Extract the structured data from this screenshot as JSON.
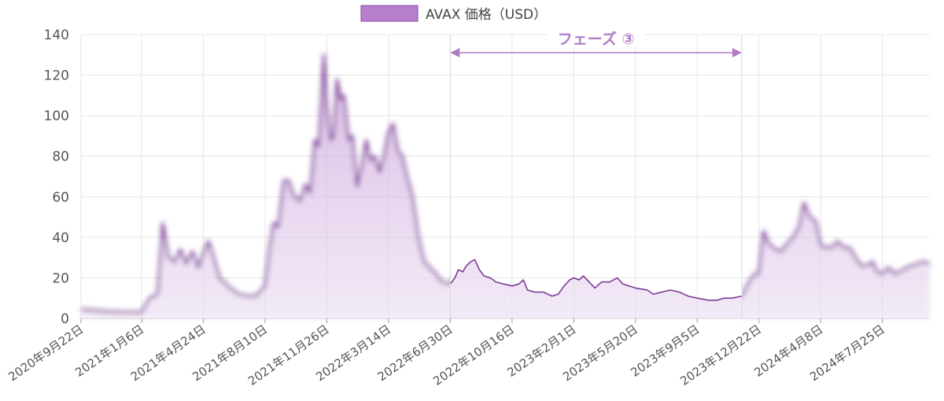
{
  "chart_data": {
    "type": "area",
    "legend": {
      "label": "AVAX 価格（USD）",
      "position": "top-center"
    },
    "colors": {
      "line": "#7b3a96",
      "fill": "#d7bde3",
      "legend_fill": "#b77fcc",
      "phase_arrow": "#b07cc6",
      "grid": "#e6e6e6"
    },
    "ylim": [
      0,
      140
    ],
    "yticks": [
      0,
      20,
      40,
      60,
      80,
      100,
      120,
      140
    ],
    "x_start": "2020-09-22",
    "x_end": "2024-10-16",
    "xticks": [
      {
        "date": "2020-09-22",
        "label": "2020年9月22日"
      },
      {
        "date": "2021-01-06",
        "label": "2021年1月6日"
      },
      {
        "date": "2021-04-24",
        "label": "2021年4月24日"
      },
      {
        "date": "2021-08-10",
        "label": "2021年8月10日"
      },
      {
        "date": "2021-11-26",
        "label": "2021年11月26日"
      },
      {
        "date": "2022-03-14",
        "label": "2022年3月14日"
      },
      {
        "date": "2022-06-30",
        "label": "2022年6月30日"
      },
      {
        "date": "2022-10-16",
        "label": "2022年10月16日"
      },
      {
        "date": "2023-02-01",
        "label": "2023年2月1日"
      },
      {
        "date": "2023-05-20",
        "label": "2023年5月20日"
      },
      {
        "date": "2023-09-05",
        "label": "2023年9月5日"
      },
      {
        "date": "2023-12-22",
        "label": "2023年12月22日"
      },
      {
        "date": "2024-04-08",
        "label": "2024年4月8日"
      },
      {
        "date": "2024-07-25",
        "label": "2024年7月25日"
      }
    ],
    "highlight": {
      "label": "フェーズ ③",
      "start": "2022-06-30",
      "end": "2023-11-22"
    },
    "series": [
      {
        "name": "AVAX 価格（USD）",
        "points": [
          [
            "2020-09-22",
            4.5
          ],
          [
            "2020-10-20",
            3.8
          ],
          [
            "2020-11-20",
            3.2
          ],
          [
            "2020-12-20",
            3.0
          ],
          [
            "2021-01-06",
            3.0
          ],
          [
            "2021-01-20",
            10
          ],
          [
            "2021-02-03",
            12
          ],
          [
            "2021-02-12",
            47
          ],
          [
            "2021-02-22",
            30
          ],
          [
            "2021-03-05",
            28
          ],
          [
            "2021-03-15",
            34
          ],
          [
            "2021-03-25",
            27
          ],
          [
            "2021-04-05",
            33
          ],
          [
            "2021-04-15",
            25
          ],
          [
            "2021-04-24",
            32
          ],
          [
            "2021-05-03",
            38
          ],
          [
            "2021-05-12",
            30
          ],
          [
            "2021-05-22",
            20
          ],
          [
            "2021-06-10",
            15
          ],
          [
            "2021-06-25",
            12
          ],
          [
            "2021-07-10",
            11
          ],
          [
            "2021-07-25",
            11
          ],
          [
            "2021-08-10",
            16
          ],
          [
            "2021-08-18",
            35
          ],
          [
            "2021-08-25",
            47
          ],
          [
            "2021-09-02",
            45
          ],
          [
            "2021-09-12",
            68
          ],
          [
            "2021-09-20",
            68
          ],
          [
            "2021-09-30",
            60
          ],
          [
            "2021-10-10",
            58
          ],
          [
            "2021-10-20",
            66
          ],
          [
            "2021-10-28",
            62
          ],
          [
            "2021-11-05",
            88
          ],
          [
            "2021-11-12",
            85
          ],
          [
            "2021-11-21",
            130
          ],
          [
            "2021-11-26",
            105
          ],
          [
            "2021-12-03",
            88
          ],
          [
            "2021-12-08",
            90
          ],
          [
            "2021-12-14",
            118
          ],
          [
            "2021-12-20",
            108
          ],
          [
            "2021-12-26",
            110
          ],
          [
            "2022-01-03",
            88
          ],
          [
            "2022-01-10",
            90
          ],
          [
            "2022-01-18",
            65
          ],
          [
            "2022-01-26",
            75
          ],
          [
            "2022-02-03",
            88
          ],
          [
            "2022-02-10",
            78
          ],
          [
            "2022-02-18",
            80
          ],
          [
            "2022-02-26",
            72
          ],
          [
            "2022-03-06",
            80
          ],
          [
            "2022-03-14",
            92
          ],
          [
            "2022-03-22",
            96
          ],
          [
            "2022-03-30",
            83
          ],
          [
            "2022-04-07",
            80
          ],
          [
            "2022-04-15",
            70
          ],
          [
            "2022-04-25",
            60
          ],
          [
            "2022-05-05",
            40
          ],
          [
            "2022-05-15",
            28
          ],
          [
            "2022-05-25",
            25
          ],
          [
            "2022-06-05",
            22
          ],
          [
            "2022-06-15",
            18
          ],
          [
            "2022-06-30",
            17
          ],
          [
            "2022-07-08",
            20
          ],
          [
            "2022-07-14",
            24
          ],
          [
            "2022-07-22",
            23
          ],
          [
            "2022-07-28",
            26
          ],
          [
            "2022-08-05",
            28
          ],
          [
            "2022-08-12",
            29
          ],
          [
            "2022-08-20",
            24
          ],
          [
            "2022-08-28",
            21
          ],
          [
            "2022-09-08",
            20
          ],
          [
            "2022-09-18",
            18
          ],
          [
            "2022-10-01",
            17
          ],
          [
            "2022-10-16",
            16
          ],
          [
            "2022-10-28",
            17
          ],
          [
            "2022-11-05",
            19
          ],
          [
            "2022-11-12",
            14
          ],
          [
            "2022-11-25",
            13
          ],
          [
            "2022-12-10",
            13
          ],
          [
            "2022-12-25",
            11
          ],
          [
            "2023-01-05",
            12
          ],
          [
            "2023-01-15",
            16
          ],
          [
            "2023-01-25",
            19
          ],
          [
            "2023-02-01",
            20
          ],
          [
            "2023-02-10",
            19
          ],
          [
            "2023-02-18",
            21
          ],
          [
            "2023-02-28",
            18
          ],
          [
            "2023-03-10",
            15
          ],
          [
            "2023-03-22",
            18
          ],
          [
            "2023-04-05",
            18
          ],
          [
            "2023-04-18",
            20
          ],
          [
            "2023-04-28",
            17
          ],
          [
            "2023-05-20",
            15
          ],
          [
            "2023-06-10",
            14
          ],
          [
            "2023-06-20",
            12
          ],
          [
            "2023-07-05",
            13
          ],
          [
            "2023-07-20",
            14
          ],
          [
            "2023-08-05",
            13
          ],
          [
            "2023-08-20",
            11
          ],
          [
            "2023-09-05",
            10
          ],
          [
            "2023-09-25",
            9
          ],
          [
            "2023-10-10",
            9
          ],
          [
            "2023-10-22",
            10
          ],
          [
            "2023-11-05",
            10
          ],
          [
            "2023-11-22",
            11
          ],
          [
            "2023-12-05",
            18
          ],
          [
            "2023-12-15",
            22
          ],
          [
            "2023-12-22",
            22
          ],
          [
            "2023-12-30",
            43
          ],
          [
            "2024-01-08",
            37
          ],
          [
            "2024-01-20",
            34
          ],
          [
            "2024-01-30",
            33
          ],
          [
            "2024-02-10",
            37
          ],
          [
            "2024-02-20",
            40
          ],
          [
            "2024-03-01",
            45
          ],
          [
            "2024-03-10",
            57
          ],
          [
            "2024-03-20",
            50
          ],
          [
            "2024-03-30",
            48
          ],
          [
            "2024-04-08",
            36
          ],
          [
            "2024-04-18",
            35
          ],
          [
            "2024-04-28",
            35
          ],
          [
            "2024-05-08",
            38
          ],
          [
            "2024-05-18",
            35
          ],
          [
            "2024-05-28",
            35
          ],
          [
            "2024-06-08",
            30
          ],
          [
            "2024-06-18",
            26
          ],
          [
            "2024-06-28",
            26
          ],
          [
            "2024-07-08",
            28
          ],
          [
            "2024-07-15",
            23
          ],
          [
            "2024-07-25",
            22
          ],
          [
            "2024-08-05",
            25
          ],
          [
            "2024-08-15",
            22
          ],
          [
            "2024-08-25",
            23
          ],
          [
            "2024-09-05",
            25
          ],
          [
            "2024-09-15",
            26
          ],
          [
            "2024-09-25",
            27
          ],
          [
            "2024-10-05",
            28
          ],
          [
            "2024-10-16",
            27
          ]
        ]
      }
    ]
  }
}
